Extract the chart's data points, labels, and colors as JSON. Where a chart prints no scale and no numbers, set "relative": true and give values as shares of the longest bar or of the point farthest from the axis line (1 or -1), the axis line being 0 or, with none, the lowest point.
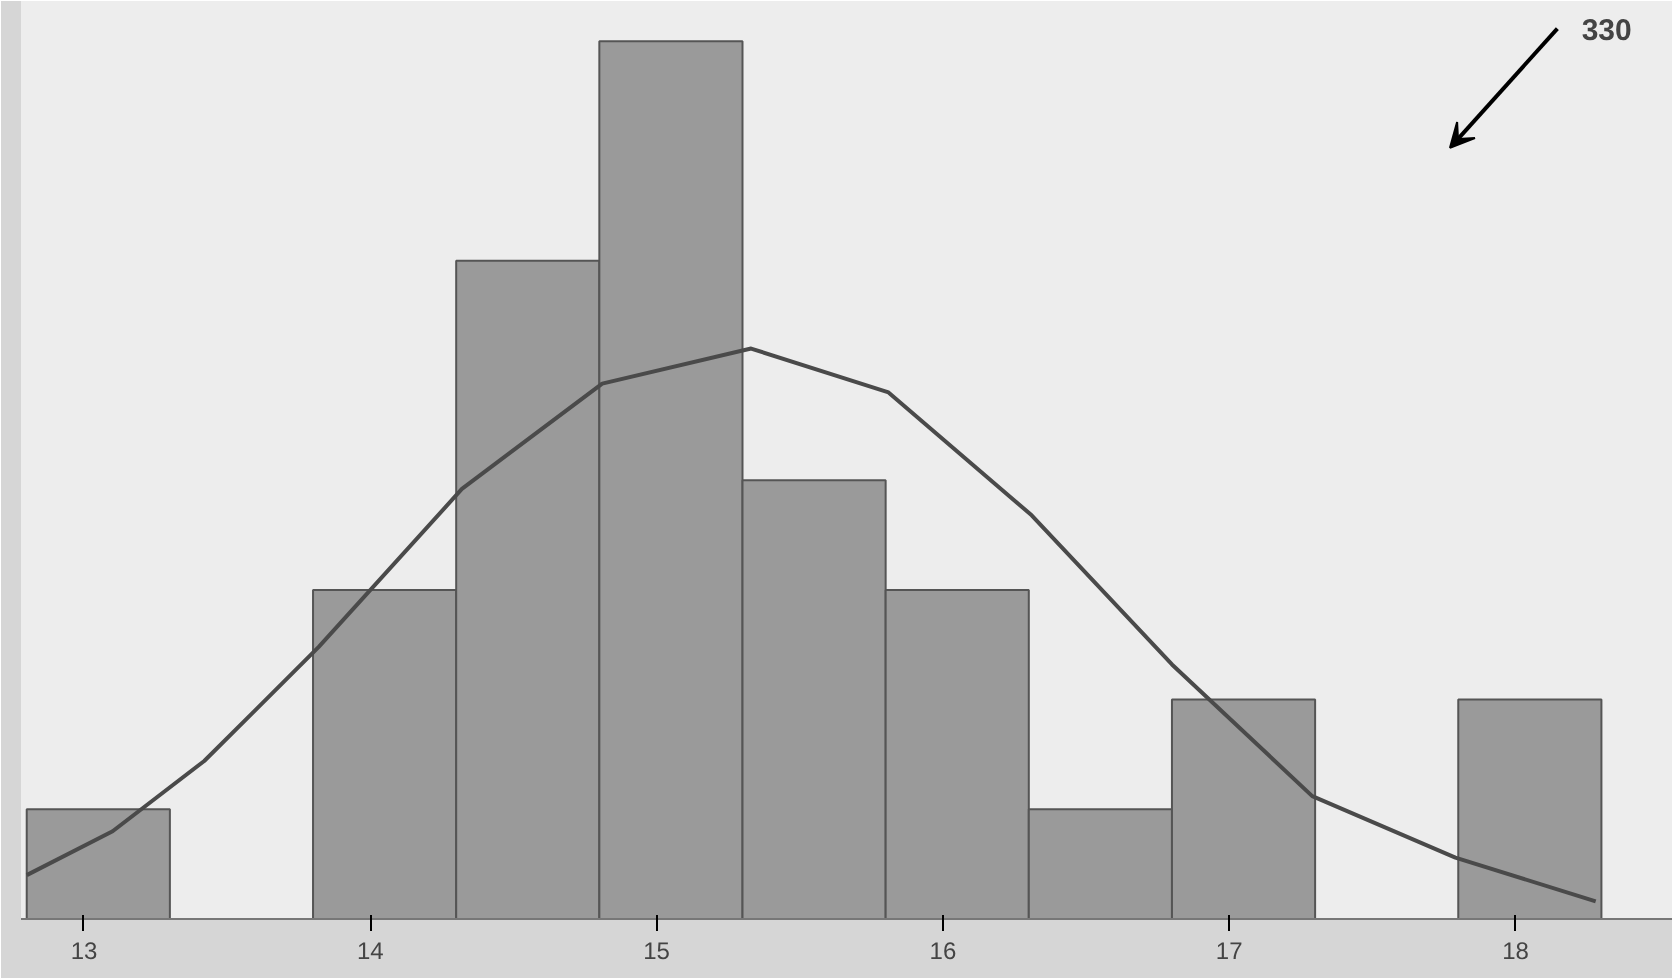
{
  "chart_data": {
    "type": "histogram",
    "relative": true,
    "bins": [
      12.8,
      13.3,
      13.8,
      14.3,
      14.8,
      15.3,
      15.8,
      16.3,
      16.8,
      17.3,
      17.8,
      18.3
    ],
    "values": [
      0.125,
      0,
      0.375,
      0.75,
      1,
      0.5,
      0.375,
      0.125,
      0.25,
      0,
      0.25
    ],
    "color": "#9a9a9a",
    "series": [
      {
        "type": "line",
        "color": "#4a4a4a",
        "x": [
          12.8,
          13.1,
          13.42,
          13.82,
          14.32,
          14.81,
          15.33,
          15.81,
          16.31,
          16.8,
          17.29,
          17.79,
          18.28
        ],
        "values": [
          0.05,
          0.1,
          0.18,
          0.31,
          0.49,
          0.61,
          0.65,
          0.6,
          0.46,
          0.29,
          0.14,
          0.07,
          0.02
        ]
      }
    ],
    "xlim": [
      12.78,
      18.55
    ],
    "xticks": [
      13,
      14,
      15,
      16,
      17,
      18
    ],
    "grid": false,
    "annotations": [
      "330"
    ]
  }
}
